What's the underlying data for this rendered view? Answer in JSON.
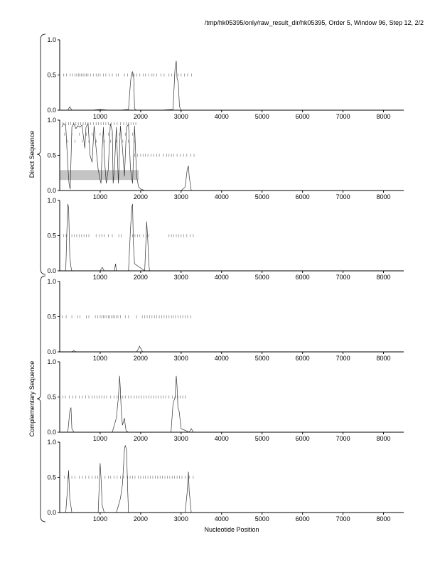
{
  "header": {
    "title": "/tmp/hk05395/only/raw_result_dir/hk05395, Order 5, Window 96, Step 12, 2/2"
  },
  "group_labels": {
    "direct": "Direct Sequence",
    "complementary": "Complementary Sequence"
  },
  "chart_data": {
    "type": "line",
    "xlabel": "Nucleotide Position",
    "xlim": [
      0,
      8500
    ],
    "x_ticks": [
      "1000",
      "2000",
      "3000",
      "4000",
      "5000",
      "6000",
      "7000",
      "8000"
    ],
    "y_ticks": [
      "0.0",
      "0.5",
      "1.0"
    ],
    "ylim": [
      0,
      1
    ],
    "panels": [
      {
        "group": "direct",
        "series": [
          {
            "x": [
              100,
              200,
              250,
              300,
              500,
              800,
              1000,
              1200,
              1500,
              1700,
              1750,
              1770,
              1800,
              1830,
              1850,
              1900,
              2000,
              2500,
              2800,
              2850,
              2880,
              2900,
              2930,
              2960,
              3000,
              3500,
              8500
            ],
            "y": [
              0,
              0,
              0.05,
              0,
              0,
              0,
              0.01,
              0,
              0,
              0.01,
              0.4,
              0.5,
              0.55,
              0.45,
              0.02,
              0,
              0,
              0,
              0.01,
              0.6,
              0.7,
              0.45,
              0.4,
              0.05,
              0,
              0,
              0
            ]
          }
        ],
        "orf_rows": [
          {
            "y": 0.5,
            "positions": [
              100,
              170,
              260,
              320,
              380,
              420,
              470,
              500,
              540,
              580,
              620,
              660,
              700,
              760,
              830,
              900,
              950,
              1000,
              1080,
              1140,
              1220,
              1300,
              1400,
              1450,
              1600,
              1680,
              1800,
              1840,
              1900,
              1980,
              2060,
              2120,
              2200,
              2280,
              2330,
              2400,
              2500,
              2580,
              2700,
              2770,
              2840,
              2920,
              3000,
              3080,
              3160,
              3260
            ]
          }
        ]
      },
      {
        "group": "direct",
        "series": [
          {
            "x": [
              50,
              100,
              150,
              200,
              230,
              260,
              300,
              350,
              400,
              450,
              500,
              550,
              600,
              620,
              650,
              700,
              750,
              800,
              850,
              900,
              950,
              1000,
              1020,
              1050,
              1080,
              1100,
              1150,
              1200,
              1250,
              1300,
              1320,
              1350,
              1400,
              1450,
              1500,
              1550,
              1600,
              1650,
              1700,
              1750,
              1800,
              1850,
              1900,
              1950,
              2000,
              2100,
              2500,
              3000,
              3100,
              3150,
              3180,
              3200,
              3250,
              3500,
              8500
            ],
            "y": [
              0.9,
              0.95,
              0.92,
              0.35,
              0.1,
              0.02,
              0.9,
              0.95,
              0.88,
              0.92,
              0.9,
              0.93,
              0.7,
              0.6,
              0.9,
              0.95,
              0.5,
              0.4,
              0.92,
              0.6,
              0.3,
              0.15,
              0.1,
              0.6,
              0.9,
              0.5,
              0.1,
              0.3,
              0.95,
              0.85,
              0.1,
              0.3,
              0.9,
              0.1,
              0.92,
              0.6,
              0.2,
              0.9,
              0.94,
              0.3,
              0.1,
              0.92,
              0.2,
              0.05,
              0.02,
              0,
              0,
              0,
              0.05,
              0.3,
              0.35,
              0.2,
              0,
              0,
              0
            ]
          }
        ],
        "highlight": {
          "x0": 0,
          "x1": 1950,
          "y0": 0.15,
          "y1": 0.29
        },
        "orf_rows": [
          {
            "y": 0.5,
            "positions": [
              1850,
              1920,
              2000,
              2060,
              2120,
              2180,
              2260,
              2320,
              2400,
              2460,
              2560,
              2640,
              2700,
              2760,
              2820,
              2900,
              2980,
              3060,
              3140,
              3240,
              3320
            ]
          },
          {
            "y": 0.95,
            "positions": [
              80,
              150,
              220,
              270,
              340,
              400,
              460,
              520,
              580,
              640,
              700,
              760,
              830,
              900,
              960,
              1020,
              1080,
              1140,
              1200,
              1270,
              1350,
              1420,
              1500,
              1580,
              1650,
              1700,
              1760,
              1820,
              1880
            ]
          },
          {
            "y": 0.8,
            "positions": [
              120,
              300,
              480,
              660,
              800,
              1000,
              1200,
              1300,
              1480,
              1620,
              1800
            ]
          },
          {
            "y": 0.7,
            "positions": [
              200,
              380,
              560,
              720,
              900,
              1100,
              1260,
              1400,
              1560,
              1700,
              1860
            ]
          }
        ]
      },
      {
        "group": "direct",
        "series": [
          {
            "x": [
              50,
              150,
              180,
              200,
              220,
              250,
              280,
              300,
              1000,
              1050,
              1100,
              1350,
              1380,
              1400,
              1700,
              1750,
              1780,
              1800,
              1820,
              1850,
              2100,
              2150,
              2180,
              2200,
              2220,
              2500,
              8500
            ],
            "y": [
              0,
              0,
              0.6,
              0.95,
              0.9,
              0.2,
              0.05,
              0,
              0,
              0.05,
              0,
              0,
              0.1,
              0,
              0,
              0.6,
              0.9,
              0.95,
              0.4,
              0.1,
              0,
              0.7,
              0.4,
              0.1,
              0,
              0,
              0
            ]
          }
        ],
        "orf_rows": [
          {
            "y": 0.5,
            "positions": [
              100,
              160,
              300,
              360,
              420,
              480,
              540,
              600,
              660,
              720,
              900,
              980,
              1040,
              1100,
              1200,
              1300,
              1460,
              1520,
              1800,
              1860,
              1920,
              1980,
              2060,
              2140,
              2200,
              2700,
              2760,
              2820,
              2880,
              2940,
              3000,
              3060,
              3140,
              3220,
              3300
            ]
          }
        ]
      },
      {
        "group": "complementary",
        "series": [
          {
            "x": [
              50,
              300,
              350,
              400,
              1900,
              1950,
              1970,
              2000,
              2050,
              8500
            ],
            "y": [
              0,
              0,
              0.02,
              0,
              0,
              0.05,
              0.08,
              0.05,
              0,
              0
            ]
          }
        ],
        "orf_rows": [
          {
            "y": 0.5,
            "positions": [
              60,
              160,
              300,
              440,
              500,
              660,
              720,
              880,
              940,
              1000,
              1040,
              1080,
              1120,
              1160,
              1200,
              1240,
              1280,
              1320,
              1360,
              1400,
              1440,
              1500,
              1620,
              1700,
              1900,
              2040,
              2100,
              2160,
              2220,
              2280,
              2340,
              2400,
              2460,
              2520,
              2580,
              2640,
              2700,
              2760,
              2800,
              2860,
              2920,
              2980,
              3040,
              3100,
              3160,
              3240
            ]
          }
        ]
      },
      {
        "group": "complementary",
        "series": [
          {
            "x": [
              50,
              200,
              250,
              280,
              300,
              350,
              1300,
              1400,
              1450,
              1480,
              1500,
              1520,
              1550,
              1600,
              1620,
              1640,
              1700,
              2750,
              2800,
              2850,
              2880,
              2900,
              2920,
              2950,
              3000,
              3200,
              3250,
              3300,
              8500
            ],
            "y": [
              0,
              0,
              0.3,
              0.35,
              0.05,
              0,
              0,
              0.2,
              0.5,
              0.8,
              0.6,
              0.3,
              0.1,
              0.2,
              0.1,
              0.02,
              0,
              0,
              0.4,
              0.5,
              0.8,
              0.65,
              0.35,
              0.3,
              0.05,
              0,
              0.05,
              0,
              0
            ]
          }
        ],
        "orf_rows": [
          {
            "y": 0.5,
            "positions": [
              80,
              140,
              240,
              320,
              400,
              480,
              560,
              640,
              720,
              800,
              860,
              920,
              980,
              1040,
              1100,
              1160,
              1260,
              1340,
              1420,
              1500,
              1560,
              1620,
              1700,
              1760,
              1840,
              1900,
              1960,
              2020,
              2080,
              2140,
              2200,
              2260,
              2320,
              2380,
              2440,
              2500,
              2560,
              2620,
              2700,
              2780,
              2860,
              2920,
              2980,
              3040,
              3100
            ]
          }
        ]
      },
      {
        "group": "complementary",
        "series": [
          {
            "x": [
              50,
              150,
              200,
              220,
              250,
              300,
              950,
              1000,
              1020,
              1050,
              1100,
              1400,
              1450,
              1500,
              1550,
              1580,
              1600,
              1620,
              1650,
              1680,
              1700,
              3100,
              3150,
              3180,
              3200,
              3250,
              8500
            ],
            "y": [
              0,
              0,
              0.4,
              0.6,
              0.2,
              0,
              0,
              0.7,
              0.5,
              0.1,
              0,
              0,
              0.1,
              0.2,
              0.4,
              0.7,
              0.9,
              0.95,
              0.9,
              0.3,
              0,
              0,
              0.3,
              0.58,
              0.3,
              0,
              0
            ]
          }
        ],
        "orf_rows": [
          {
            "y": 0.5,
            "positions": [
              120,
              200,
              300,
              380,
              480,
              560,
              640,
              720,
              800,
              880,
              940,
              1120,
              1200,
              1260,
              1340,
              1420,
              1500,
              1580,
              1680,
              1740,
              1800,
              1860,
              1940,
              2000,
              2060,
              2120,
              2180,
              2240,
              2300,
              2360,
              2420,
              2480,
              2540,
              2600,
              2660,
              2720,
              2780,
              2840,
              2900,
              2960,
              3020,
              3100,
              3200,
              3300
            ]
          }
        ]
      }
    ]
  }
}
